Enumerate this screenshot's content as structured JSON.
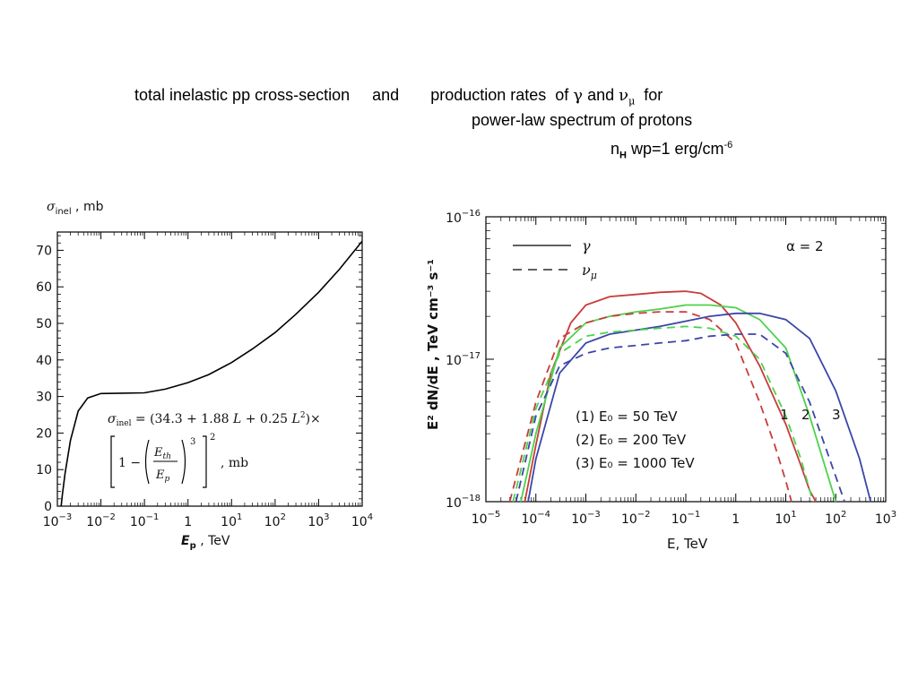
{
  "header": {
    "line1_a": "total inelastic pp cross-section",
    "line1_b": "and",
    "line1_c": "production rates  of",
    "gamma_symbol": "γ",
    "and_word": "and",
    "nu_symbol": "ν",
    "mu_sub": "μ",
    "for_word": "for",
    "line2": "power-law spectrum of protons",
    "line3_n": "n",
    "line3_sub": "H",
    "line3_rest": " wp=1 erg/cm",
    "line3_sup": "-6"
  },
  "chart_data": [
    {
      "type": "line",
      "ylabel_sym": "σ",
      "ylabel_sub": "inel",
      "ylabel_rest": " ,  mb",
      "xlabel_sym": "E",
      "xlabel_sub": "p",
      "xlabel_rest": " ,  TeV",
      "x_scale": "log",
      "xlim": [
        0.001,
        10000
      ],
      "ylim": [
        0,
        75
      ],
      "y_ticks": [
        "0",
        "10",
        "20",
        "30",
        "40",
        "50",
        "60",
        "70"
      ],
      "x_ticks": [
        {
          "base": "10",
          "exp": "−3"
        },
        {
          "base": "10",
          "exp": "−2"
        },
        {
          "base": "10",
          "exp": "−1"
        },
        {
          "base": "1",
          "exp": ""
        },
        {
          "base": "10",
          "exp": "1"
        },
        {
          "base": "10",
          "exp": "2"
        },
        {
          "base": "10",
          "exp": "3"
        },
        {
          "base": "10",
          "exp": "4"
        }
      ],
      "formula_line1": "σinel = (34.3 + 1.88 L + 0.25 L²)×",
      "formula_line2": "[1 − (Eth/Ep)³]² ,  mb",
      "series": [
        {
          "x": [
            0.00122,
            0.0013,
            0.0015,
            0.002,
            0.003,
            0.005,
            0.01,
            0.03,
            0.1,
            0.3,
            1,
            3,
            10,
            30,
            100,
            300,
            1000,
            3000,
            10000
          ],
          "values": [
            0,
            3,
            9,
            18,
            26,
            29.6,
            30.8,
            30.9,
            31.0,
            32.0,
            33.8,
            36.0,
            39.3,
            43.0,
            47.5,
            52.5,
            58.5,
            64.8,
            72.5
          ]
        }
      ]
    },
    {
      "type": "line",
      "ylabel": "E² dN/dE , TeV cm⁻³ s⁻¹",
      "xlabel": "E, TeV",
      "x_scale": "log",
      "y_scale": "log",
      "xlim": [
        1e-05,
        1000
      ],
      "ylim": [
        1e-18,
        1e-16
      ],
      "y_ticks": [
        {
          "base": "10",
          "exp": "−16"
        },
        {
          "base": "10",
          "exp": "−17"
        },
        {
          "base": "10",
          "exp": "−18"
        }
      ],
      "x_ticks": [
        {
          "base": "10",
          "exp": "−5"
        },
        {
          "base": "10",
          "exp": "−4"
        },
        {
          "base": "10",
          "exp": "−3"
        },
        {
          "base": "10",
          "exp": "−2"
        },
        {
          "base": "10",
          "exp": "−1"
        },
        {
          "base": "1",
          "exp": ""
        },
        {
          "base": "10",
          "exp": "1"
        },
        {
          "base": "10",
          "exp": "2"
        },
        {
          "base": "10",
          "exp": "3"
        }
      ],
      "legend_solid": "γ",
      "legend_dashed": "ν",
      "legend_dashed_sub": "μ",
      "alpha_label": "α = 2",
      "cases": [
        {
          "label": "(1)  E₀  =  50 TeV"
        },
        {
          "label": "(2)  E₀  =  200 TeV"
        },
        {
          "label": "(3)  E₀  =  1000 TeV"
        }
      ],
      "curve_labels": [
        "1",
        "2",
        "3"
      ],
      "colors": {
        "red": "#c83c3c",
        "green": "#4cd24c",
        "blue": "#3c46a8"
      },
      "series": [
        {
          "style": "solid",
          "color": "red",
          "x": [
            6e-05,
            0.0001,
            0.0002,
            0.0005,
            0.001,
            0.003,
            0.01,
            0.03,
            0.1,
            0.2,
            0.5,
            1,
            3,
            10,
            20,
            30,
            40
          ],
          "values": [
            1e-18,
            2.5e-18,
            8e-18,
            1.8e-17,
            2.4e-17,
            2.75e-17,
            2.85e-17,
            2.95e-17,
            3e-17,
            2.9e-17,
            2.4e-17,
            1.8e-17,
            9e-18,
            3.5e-18,
            1.8e-18,
            1.2e-18,
            1e-18
          ]
        },
        {
          "style": "solid",
          "color": "green",
          "x": [
            5e-05,
            0.0001,
            0.0003,
            0.001,
            0.003,
            0.01,
            0.03,
            0.1,
            0.3,
            1,
            3,
            10,
            30,
            60,
            100
          ],
          "values": [
            1e-18,
            3e-18,
            1.2e-17,
            1.8e-17,
            2e-17,
            2.15e-17,
            2.25e-17,
            2.4e-17,
            2.4e-17,
            2.3e-17,
            1.9e-17,
            1.2e-17,
            4e-18,
            1.8e-18,
            1e-18
          ]
        },
        {
          "style": "solid",
          "color": "blue",
          "x": [
            7e-05,
            0.0001,
            0.0003,
            0.001,
            0.003,
            0.01,
            0.03,
            0.1,
            0.3,
            1,
            3,
            10,
            30,
            100,
            300,
            500
          ],
          "values": [
            1e-18,
            2e-18,
            8e-18,
            1.3e-17,
            1.5e-17,
            1.6e-17,
            1.7e-17,
            1.85e-17,
            2e-17,
            2.1e-17,
            2.1e-17,
            1.9e-17,
            1.4e-17,
            6e-18,
            2e-18,
            1e-18
          ]
        },
        {
          "style": "dashed",
          "color": "red",
          "x": [
            3e-05,
            0.0001,
            0.0003,
            0.001,
            0.003,
            0.01,
            0.03,
            0.1,
            0.3,
            1,
            3,
            6,
            10,
            13
          ],
          "values": [
            1e-18,
            5e-18,
            1.4e-17,
            1.8e-17,
            2e-17,
            2.1e-17,
            2.15e-17,
            2.15e-17,
            1.9e-17,
            1.3e-17,
            5e-18,
            2.5e-18,
            1.4e-18,
            1e-18
          ]
        },
        {
          "style": "dashed",
          "color": "green",
          "x": [
            3.5e-05,
            0.0001,
            0.0003,
            0.001,
            0.003,
            0.01,
            0.03,
            0.1,
            0.3,
            1,
            3,
            10,
            20,
            35
          ],
          "values": [
            1e-18,
            4.5e-18,
            1.1e-17,
            1.45e-17,
            1.55e-17,
            1.6e-17,
            1.65e-17,
            1.7e-17,
            1.65e-17,
            1.45e-17,
            1e-17,
            4e-18,
            2e-18,
            1e-18
          ]
        },
        {
          "style": "dashed",
          "color": "blue",
          "x": [
            4e-05,
            0.0001,
            0.0003,
            0.001,
            0.003,
            0.01,
            0.03,
            0.1,
            0.3,
            1,
            3,
            10,
            30,
            100,
            150
          ],
          "values": [
            1e-18,
            4e-18,
            9e-18,
            1.1e-17,
            1.2e-17,
            1.25e-17,
            1.3e-17,
            1.35e-17,
            1.45e-17,
            1.5e-17,
            1.5e-17,
            1.1e-17,
            5e-18,
            1.5e-18,
            1e-18
          ]
        }
      ]
    }
  ]
}
